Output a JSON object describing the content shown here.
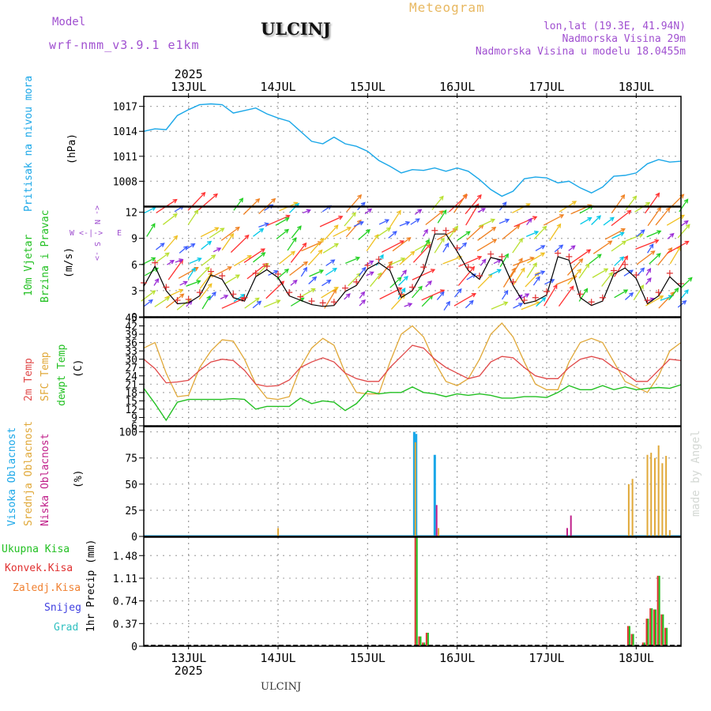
{
  "header": {
    "model_label": "Model",
    "model_name": "wrf-nmm_v3.9.1 e1km",
    "station": "ULCINJ",
    "product": "Meteogram",
    "coords": "lon,lat (19.3E, 41.94N)",
    "altitude": "Nadmorska Visina 29m",
    "model_altitude": "Nadmorska Visina u modelu 18.0455m",
    "footer_station": "ULCINJ",
    "credit": "made by Angel"
  },
  "time_axis": {
    "year": "2025",
    "days": [
      "13JUL",
      "14JUL",
      "15JUL",
      "16JUL",
      "17JUL",
      "18JUL"
    ],
    "start_hour": 12,
    "end_hour": 156,
    "day_hours": [
      24,
      48,
      72,
      96,
      120,
      144
    ]
  },
  "colors": {
    "pressure": "#1aa7e8",
    "wind_speed": "#000000",
    "gust": "#e03030",
    "t2m": "#e04848",
    "sfc": "#e0a838",
    "dewpoint": "#22c022",
    "cloud_high": "#1aa7e8",
    "cloud_mid": "#e0a838",
    "cloud_low": "#c0208a",
    "rain_total": "#22c022",
    "rain_conv": "#e03030",
    "rain_frozen": "#f08030",
    "snow": "#4040e0",
    "hail": "#30c0c0"
  },
  "chart_data": [
    {
      "type": "line",
      "panel": "pressure",
      "ylabel_lines": [
        "Pritisak na nivou mora",
        "(hPa)"
      ],
      "y_ticks": [
        "1008",
        "1011",
        "1014",
        "1017"
      ],
      "ylim": [
        1005,
        1018.2
      ],
      "series": [
        {
          "x": [
            12,
            15,
            18,
            21,
            24,
            27,
            30,
            33,
            36,
            39,
            42,
            45,
            48,
            51,
            54,
            57,
            60,
            63,
            66,
            69,
            72,
            75,
            78,
            81,
            84,
            87,
            90,
            93,
            96,
            99,
            102,
            105,
            108,
            111,
            114,
            117,
            120,
            123,
            126,
            129,
            132,
            135,
            138,
            141,
            144,
            147,
            150,
            153,
            156
          ],
          "values": [
            1014,
            1014.3,
            1014.2,
            1015.9,
            1016.6,
            1017.2,
            1017.3,
            1017.2,
            1016.2,
            1016.5,
            1016.8,
            1016.1,
            1015.6,
            1015.2,
            1014,
            1012.8,
            1012.5,
            1013.3,
            1012.5,
            1012.2,
            1011.6,
            1010.5,
            1009.8,
            1009,
            1009.4,
            1009.3,
            1009.6,
            1009.2,
            1009.6,
            1009.2,
            1008.2,
            1007,
            1006.2,
            1006.8,
            1008.3,
            1008.5,
            1008.4,
            1007.8,
            1008,
            1007.2,
            1006.6,
            1007.3,
            1008.6,
            1008.7,
            1009,
            1010.1,
            1010.6,
            1010.3,
            1010.4
          ]
        }
      ]
    },
    {
      "type": "line",
      "panel": "wind",
      "ylabel_lines": [
        "10m Vjetar",
        "Brzina i Pravac",
        "(m/s)"
      ],
      "compass": [
        "N",
        "W",
        "E",
        "S"
      ],
      "y_ticks": [
        "0",
        "3",
        "6",
        "9",
        "12"
      ],
      "ylim": [
        0,
        12.6
      ],
      "series": [
        {
          "x": [
            12,
            15,
            18,
            21,
            24,
            27,
            30,
            33,
            36,
            39,
            42,
            45,
            48,
            51,
            54,
            57,
            60,
            63,
            66,
            69,
            72,
            75,
            78,
            81,
            84,
            87,
            90,
            93,
            96,
            99,
            102,
            105,
            108,
            111,
            114,
            117,
            120,
            123,
            126,
            129,
            132,
            135,
            138,
            141,
            144,
            147,
            150,
            153,
            156
          ],
          "values": [
            3.5,
            5.8,
            3,
            1.5,
            1.6,
            2.4,
            4.8,
            4.3,
            2.2,
            1.8,
            4.6,
            5.4,
            4.5,
            2.4,
            1.9,
            1.4,
            1.2,
            1.3,
            2.9,
            3.6,
            5.5,
            6.2,
            5.3,
            2.2,
            3,
            5.3,
            9.5,
            9.5,
            7.5,
            5.3,
            4.3,
            6.8,
            6.5,
            3.6,
            1.5,
            1.8,
            2.5,
            6.9,
            6.5,
            2.2,
            1.3,
            1.8,
            4.9,
            5.6,
            4.4,
            1.5,
            2.4,
            4.6,
            3.4
          ]
        }
      ]
    },
    {
      "type": "line",
      "panel": "temperature",
      "ylabel_lines": [
        "2m Temp",
        "SFC Temp",
        "dewpt Temp",
        "(C)"
      ],
      "y_ticks": [
        "6",
        "9",
        "12",
        "15",
        "18",
        "21",
        "24",
        "27",
        "30",
        "33",
        "36",
        "39",
        "42",
        "45"
      ],
      "ylim": [
        6,
        45
      ],
      "series": [
        {
          "x": [
            12,
            15,
            18,
            21,
            24,
            27,
            30,
            33,
            36,
            39,
            42,
            45,
            48,
            51,
            54,
            57,
            60,
            63,
            66,
            69,
            72,
            75,
            78,
            81,
            84,
            87,
            90,
            93,
            96,
            99,
            102,
            105,
            108,
            111,
            114,
            117,
            120,
            123,
            126,
            129,
            132,
            135,
            138,
            141,
            144,
            147,
            150,
            153,
            156
          ],
          "values": [
            30,
            26.6,
            21.5,
            21.8,
            22.4,
            26,
            29,
            30,
            29.5,
            26,
            21,
            20.2,
            20.5,
            22.5,
            27,
            29,
            30.5,
            29,
            25,
            23,
            22,
            22,
            27,
            31,
            35,
            34,
            30,
            27,
            25,
            23,
            24,
            29,
            31,
            30.5,
            27,
            24,
            23,
            23,
            27,
            30,
            31,
            30,
            27,
            25,
            22,
            22,
            26,
            30,
            29.5
          ]
        },
        {
          "x": [
            12,
            15,
            18,
            21,
            24,
            27,
            30,
            33,
            36,
            39,
            42,
            45,
            48,
            51,
            54,
            57,
            60,
            63,
            66,
            69,
            72,
            75,
            78,
            81,
            84,
            87,
            90,
            93,
            96,
            99,
            102,
            105,
            108,
            111,
            114,
            117,
            120,
            123,
            126,
            129,
            132,
            135,
            138,
            141,
            144,
            147,
            150,
            153,
            156
          ],
          "values": [
            34,
            36,
            25,
            16.5,
            17,
            27,
            33,
            37,
            36.5,
            30,
            21,
            16,
            15.5,
            16.5,
            27,
            34,
            37.5,
            35,
            25,
            18,
            17.5,
            17.5,
            29,
            39,
            42,
            38,
            29,
            22,
            20.5,
            23,
            30,
            39,
            43,
            38,
            29,
            21,
            19,
            19,
            29,
            36,
            37.5,
            36,
            29,
            22,
            20,
            18,
            24,
            33,
            36
          ]
        },
        {
          "x": [
            12,
            15,
            18,
            21,
            24,
            27,
            30,
            33,
            36,
            39,
            42,
            45,
            48,
            51,
            54,
            57,
            60,
            63,
            66,
            69,
            72,
            75,
            78,
            81,
            84,
            87,
            90,
            93,
            96,
            99,
            102,
            105,
            108,
            111,
            114,
            117,
            120,
            123,
            126,
            129,
            132,
            135,
            138,
            141,
            144,
            147,
            150,
            153,
            156
          ],
          "values": [
            19.5,
            14,
            8,
            14.5,
            15.5,
            15.5,
            15.5,
            15.5,
            15.8,
            15.5,
            12,
            13,
            13,
            13,
            16,
            14,
            15,
            14.5,
            11.5,
            14,
            18.5,
            17.5,
            18,
            18,
            20,
            18,
            17.5,
            16.5,
            17.5,
            17,
            17.5,
            17,
            16,
            16,
            16.5,
            16.5,
            16.2,
            18,
            20.5,
            19,
            19,
            20.5,
            19,
            20,
            19,
            19.5,
            19.8,
            19.5,
            20.8
          ]
        }
      ]
    },
    {
      "type": "bar",
      "panel": "clouds",
      "ylabel_lines": [
        "Visoka Oblacnost",
        "Srednja Oblacnost",
        "Niska Oblacnost",
        "(%)"
      ],
      "y_ticks": [
        "0",
        "25",
        "50",
        "75",
        "100"
      ],
      "ylim": [
        0,
        105
      ],
      "series": [
        {
          "x": [
            84.5,
            85,
            90
          ],
          "values": [
            100,
            98,
            78
          ]
        },
        {
          "x": [
            48,
            84.8,
            91,
            142,
            143,
            147,
            148,
            149,
            150,
            151,
            152,
            153
          ],
          "values": [
            8,
            90,
            8,
            50,
            55,
            78,
            80,
            75,
            87,
            70,
            77,
            6
          ]
        },
        {
          "x": [
            90.5,
            125.5,
            126.5
          ],
          "values": [
            30,
            8,
            20
          ]
        }
      ]
    },
    {
      "type": "bar",
      "panel": "precip",
      "ylabel_lines": [
        "1hr Precip (mm)"
      ],
      "legend": [
        "Ukupna Kisa",
        "Konvek.Kisa",
        "Zaledj.Kisa",
        "Snijeg",
        "Grad"
      ],
      "y_ticks": [
        "0",
        "0.37",
        "0.74",
        "1.11",
        "1.48"
      ],
      "ylim": [
        0,
        1.78
      ],
      "series": [
        {
          "x": [
            85,
            86,
            87,
            88,
            142,
            143,
            146,
            147,
            148,
            149,
            150,
            151,
            152
          ],
          "values": [
            1.78,
            0.16,
            0.06,
            0.22,
            0.33,
            0.2,
            0.06,
            0.45,
            0.62,
            0.6,
            1.15,
            0.52,
            0.3
          ]
        }
      ]
    }
  ]
}
